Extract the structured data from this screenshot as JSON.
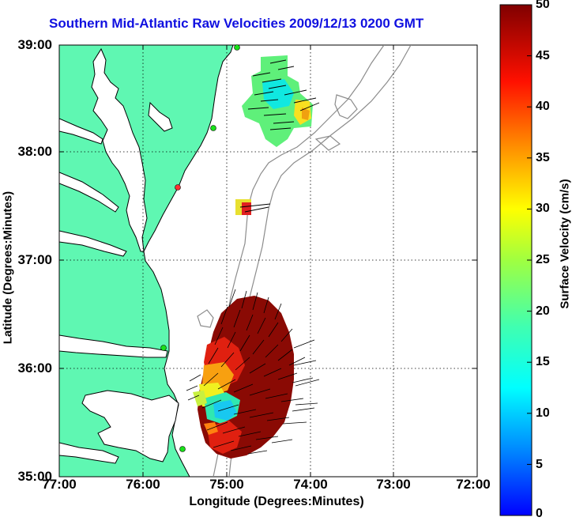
{
  "title": "Southern Mid-Atlantic Raw Velocities 2009/12/13 0200 GMT",
  "x_axis": {
    "label": "Longitude (Degrees:Minutes)",
    "ticks": [
      "77:00",
      "76:00",
      "75:00",
      "74:00",
      "73:00",
      "72:00"
    ]
  },
  "y_axis": {
    "label": "Latitude (Degrees:Minutes)",
    "ticks": [
      "39:00",
      "38:00",
      "37:00",
      "36:00",
      "35:00"
    ]
  },
  "colorbar": {
    "label": "Surface Velocity (cm/s)",
    "ticks": [
      "50",
      "45",
      "40",
      "35",
      "30",
      "25",
      "20",
      "15",
      "10",
      "5",
      "0"
    ],
    "min": 0,
    "max": 50,
    "colors": [
      "#0000ff",
      "#00bfff",
      "#00ffff",
      "#40ffc0",
      "#80ff80",
      "#ffff00",
      "#ffa000",
      "#ff4000",
      "#e00000",
      "#800000"
    ]
  },
  "colors": {
    "land": "#5ff7b2",
    "coastline": "#000000",
    "bathymetry": "#8c8c8c",
    "station": "#19e019",
    "station_alt": "#ff3030",
    "title": "#1010e0"
  }
}
